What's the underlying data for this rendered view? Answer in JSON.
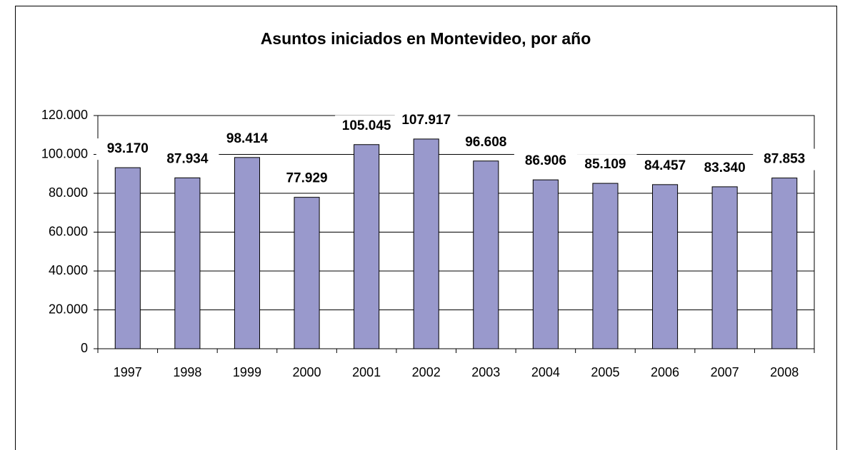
{
  "chart_data": {
    "type": "bar",
    "title": "Asuntos iniciados en Montevideo, por año",
    "categories": [
      "1997",
      "1998",
      "1999",
      "2000",
      "2001",
      "2002",
      "2003",
      "2004",
      "2005",
      "2006",
      "2007",
      "2008"
    ],
    "values": [
      93170,
      87934,
      98414,
      77929,
      105045,
      107917,
      96608,
      86906,
      85109,
      84457,
      83340,
      87853
    ],
    "value_labels": [
      "93.170",
      "87.934",
      "98.414",
      "77.929",
      "105.045",
      "107.917",
      "96.608",
      "86.906",
      "85.109",
      "84.457",
      "83.340",
      "87.853"
    ],
    "color": "#9999cc",
    "ylim": [
      0,
      120000
    ],
    "yticks": [
      0,
      {
        "value": 20000,
        "label": "20.000"
      },
      {
        "value": 40000,
        "label": "40.000"
      },
      {
        "value": 60000,
        "label": "60.000"
      },
      {
        "value": 80000,
        "label": "80.000"
      },
      {
        "value": 100000,
        "label": "100.000"
      },
      {
        "value": 120000,
        "label": "120.000"
      }
    ],
    "grid": true
  }
}
